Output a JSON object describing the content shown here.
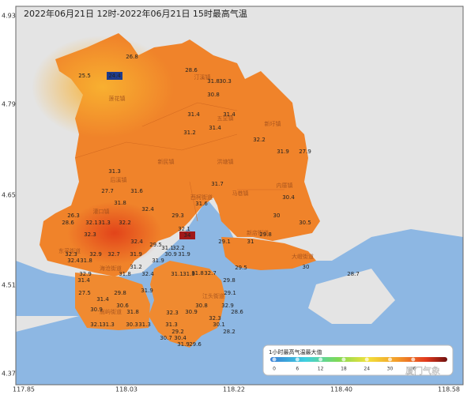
{
  "title": "2022年06月21日 12时-2022年06月21日 15时最高气温",
  "axes": {
    "lat_ticks": [
      "4.93",
      "4.79",
      "4.65",
      "4.51",
      "4.37"
    ],
    "lon_ticks": [
      "117.85",
      "118.03",
      "118.22",
      "118.40",
      "118.58"
    ]
  },
  "places": [
    "莲花镇",
    "汀溪镇",
    "五显镇",
    "新圩镇",
    "新民镇",
    "洪塘镇",
    "马巷镇",
    "内厝镇",
    "灌口镇",
    "后溪镇",
    "西柯街道",
    "新店街道",
    "大嶝街道",
    "东孚街道",
    "海沧街道",
    "江头街道",
    "嵩屿街道"
  ],
  "stations": [
    "26.8",
    "25.5",
    "24.4",
    "28.6",
    "31.8",
    "30.3",
    "30.8",
    "31.4",
    "31.4",
    "31.4",
    "31.2",
    "32.2",
    "31.9",
    "27.9",
    "31.3",
    "27.7",
    "31.6",
    "31.7",
    "30.4",
    "31.8",
    "31.6",
    "32.4",
    "26.3",
    "30",
    "29.3",
    "28.6",
    "32.1",
    "31.3",
    "32.2",
    "30.5",
    "32.1",
    "34",
    "29.8",
    "32.3",
    "29.1",
    "31",
    "32.4",
    "29.5",
    "31.1",
    "32.2",
    "32.3",
    "32.9",
    "32.7",
    "31.9",
    "30.9",
    "31.9",
    "32.4",
    "31.8",
    "31.9",
    "30",
    "29.5",
    "31.2",
    "31.8",
    "32.7",
    "28.7",
    "32.9",
    "31.8",
    "32.4",
    "31.1",
    "31.9",
    "31.4",
    "29.8",
    "27.5",
    "29.8",
    "31.9",
    "29.1",
    "31.4",
    "30.6",
    "31.8",
    "30.8",
    "32.9",
    "30.9",
    "30.9",
    "28.6",
    "32.3",
    "32.1",
    "31.3",
    "30.3",
    "31.3",
    "31.3",
    "30.1",
    "28.2",
    "29.2",
    "30.7",
    "30.4",
    "31.9",
    "29.6",
    "32.3"
  ],
  "legend": {
    "title": "1小时最高气温最大值",
    "ticks": [
      "0",
      "6",
      "12",
      "18",
      "24",
      "30",
      "36"
    ]
  },
  "watermark": "厦门气象"
}
